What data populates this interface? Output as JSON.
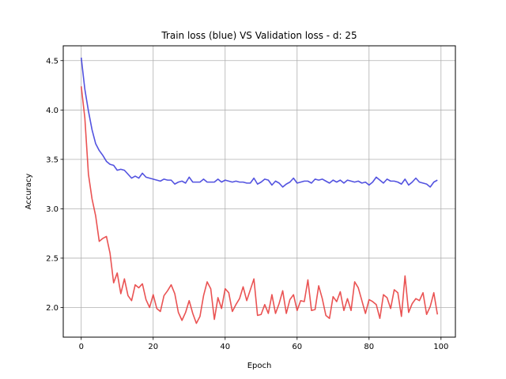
{
  "chart_data": {
    "type": "line",
    "title": "Train loss (blue) VS Validation loss - d: 25",
    "xlabel": "Epoch",
    "ylabel": "Accuracy",
    "xlim": [
      -5,
      104
    ],
    "ylim": [
      1.7,
      4.65
    ],
    "xticks": [
      0,
      20,
      40,
      60,
      80,
      100
    ],
    "yticks": [
      2.0,
      2.5,
      3.0,
      3.5,
      4.0,
      4.5
    ],
    "ytick_labels": [
      "2.0",
      "2.5",
      "3.0",
      "3.5",
      "4.0",
      "4.5"
    ],
    "xtick_labels": [
      "0",
      "20",
      "40",
      "60",
      "80",
      "100"
    ],
    "grid": true,
    "x": [
      0,
      1,
      2,
      3,
      4,
      5,
      6,
      7,
      8,
      9,
      10,
      11,
      12,
      13,
      14,
      15,
      16,
      17,
      18,
      19,
      20,
      21,
      22,
      23,
      24,
      25,
      26,
      27,
      28,
      29,
      30,
      31,
      32,
      33,
      34,
      35,
      36,
      37,
      38,
      39,
      40,
      41,
      42,
      43,
      44,
      45,
      46,
      47,
      48,
      49,
      50,
      51,
      52,
      53,
      54,
      55,
      56,
      57,
      58,
      59,
      60,
      61,
      62,
      63,
      64,
      65,
      66,
      67,
      68,
      69,
      70,
      71,
      72,
      73,
      74,
      75,
      76,
      77,
      78,
      79,
      80,
      81,
      82,
      83,
      84,
      85,
      86,
      87,
      88,
      89,
      90,
      91,
      92,
      93,
      94,
      95,
      96,
      97,
      98,
      99
    ],
    "series": [
      {
        "color": "#4040dd",
        "values": [
          4.53,
          4.21,
          3.99,
          3.8,
          3.66,
          3.59,
          3.54,
          3.48,
          3.45,
          3.44,
          3.39,
          3.4,
          3.39,
          3.35,
          3.31,
          3.33,
          3.31,
          3.36,
          3.32,
          3.31,
          3.3,
          3.29,
          3.28,
          3.3,
          3.29,
          3.29,
          3.25,
          3.27,
          3.28,
          3.26,
          3.32,
          3.27,
          3.27,
          3.27,
          3.3,
          3.27,
          3.27,
          3.27,
          3.3,
          3.27,
          3.29,
          3.28,
          3.27,
          3.28,
          3.27,
          3.27,
          3.26,
          3.26,
          3.31,
          3.25,
          3.27,
          3.3,
          3.29,
          3.24,
          3.28,
          3.26,
          3.22,
          3.25,
          3.27,
          3.31,
          3.26,
          3.27,
          3.28,
          3.28,
          3.26,
          3.3,
          3.29,
          3.3,
          3.28,
          3.26,
          3.29,
          3.27,
          3.29,
          3.26,
          3.29,
          3.28,
          3.27,
          3.28,
          3.26,
          3.27,
          3.24,
          3.27,
          3.32,
          3.29,
          3.26,
          3.3,
          3.28,
          3.28,
          3.27,
          3.25,
          3.3,
          3.24,
          3.27,
          3.31,
          3.27,
          3.26,
          3.25,
          3.22,
          3.27,
          3.29
        ]
      },
      {
        "color": "#e84040",
        "values": [
          4.24,
          3.92,
          3.35,
          3.1,
          2.93,
          2.67,
          2.7,
          2.72,
          2.55,
          2.25,
          2.35,
          2.14,
          2.29,
          2.12,
          2.07,
          2.23,
          2.2,
          2.24,
          2.08,
          2.0,
          2.13,
          1.99,
          1.96,
          2.12,
          2.17,
          2.23,
          2.14,
          1.95,
          1.87,
          1.95,
          2.07,
          1.94,
          1.84,
          1.91,
          2.12,
          2.26,
          2.19,
          1.88,
          2.1,
          1.99,
          2.19,
          2.15,
          1.96,
          2.03,
          2.09,
          2.21,
          2.07,
          2.18,
          2.29,
          1.92,
          1.93,
          2.03,
          1.94,
          2.13,
          1.94,
          2.04,
          2.17,
          1.94,
          2.08,
          2.13,
          1.97,
          2.07,
          2.06,
          2.28,
          1.97,
          1.98,
          2.22,
          2.09,
          1.92,
          1.89,
          2.11,
          2.06,
          2.16,
          1.97,
          2.09,
          1.97,
          2.26,
          2.2,
          2.07,
          1.94,
          2.08,
          2.06,
          2.03,
          1.89,
          2.13,
          2.1,
          1.99,
          2.18,
          2.15,
          1.91,
          2.32,
          1.95,
          2.04,
          2.09,
          2.07,
          2.15,
          1.93,
          2.01,
          2.15,
          1.93
        ]
      }
    ]
  }
}
